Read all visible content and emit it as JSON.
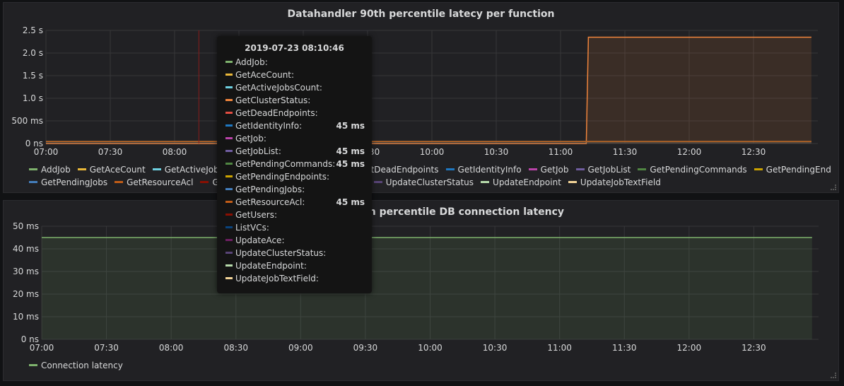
{
  "panel1": {
    "title": "Datahandler 90th percentile latecy per function",
    "chart_data": {
      "type": "line",
      "title": "Datahandler 90th percentile latecy per function",
      "y_ticks": [
        "0 ns",
        "500 ms",
        "1.0 s",
        "1.5 s",
        "2.0 s",
        "2.5 s"
      ],
      "y_range_seconds": [
        0,
        2.5
      ],
      "x_ticks": [
        "07:00",
        "07:30",
        "08:00",
        "08:30",
        "09:00",
        "09:30",
        "10:00",
        "10:30",
        "11:00",
        "11:30",
        "12:00",
        "12:30"
      ],
      "x_range": [
        "07:00",
        "13:00"
      ],
      "grid": true,
      "legend_position": "bottom",
      "series": [
        {
          "name": "AddJob",
          "color": "#7eb26d"
        },
        {
          "name": "GetAceCount",
          "color": "#eab839"
        },
        {
          "name": "GetActiveJobsCount",
          "color": "#6ed0e0"
        },
        {
          "name": "GetClusterStatus",
          "color": "#ef843c",
          "values_seconds": [
            {
              "x": "07:00",
              "y": 0.0
            },
            {
              "x": "11:12",
              "y": 0.0
            },
            {
              "x": "11:13",
              "y": 2.35
            },
            {
              "x": "12:57",
              "y": 2.35
            }
          ]
        },
        {
          "name": "GetDeadEndpoints",
          "color": "#e24d42"
        },
        {
          "name": "GetIdentityInfo",
          "color": "#1f78c1",
          "values_seconds": [
            {
              "x": "07:00",
              "y": 0.045
            },
            {
              "x": "12:57",
              "y": 0.045
            }
          ]
        },
        {
          "name": "GetJob",
          "color": "#ba43a9"
        },
        {
          "name": "GetJobList",
          "color": "#705da0",
          "values_seconds": [
            {
              "x": "07:00",
              "y": 0.045
            },
            {
              "x": "12:57",
              "y": 0.045
            }
          ]
        },
        {
          "name": "GetPendingCommands",
          "color": "#508642",
          "values_seconds": [
            {
              "x": "07:00",
              "y": 0.045
            },
            {
              "x": "12:57",
              "y": 0.045
            }
          ]
        },
        {
          "name": "GetPendingEndpoints",
          "color": "#cca300"
        },
        {
          "name": "GetPendingJobs",
          "color": "#447ebc"
        },
        {
          "name": "GetResourceAcl",
          "color": "#c15c17",
          "values_seconds": [
            {
              "x": "07:00",
              "y": 0.045
            },
            {
              "x": "12:57",
              "y": 0.045
            }
          ]
        },
        {
          "name": "GetUsers",
          "color": "#890f02"
        },
        {
          "name": "ListVCs",
          "color": "#0a437c"
        },
        {
          "name": "UpdateAce",
          "color": "#6d1f62"
        },
        {
          "name": "UpdateClusterStatus",
          "color": "#584477"
        },
        {
          "name": "UpdateEndpoint",
          "color": "#b7dbab"
        },
        {
          "name": "UpdateJobTextField",
          "color": "#f4d598"
        }
      ]
    },
    "legend_row1": [
      {
        "label": "AddJob",
        "color": "#7eb26d"
      },
      {
        "label": "GetAceCount",
        "color": "#eab839"
      },
      {
        "label": "GetActiveJobsCount",
        "color": "#6ed0e0"
      },
      {
        "label": "GetClusterStatus",
        "color": "#ef843c"
      },
      {
        "label": "GetDeadEndpoints",
        "color": "#e24d42"
      },
      {
        "label": "GetIdentityInfo",
        "color": "#1f78c1"
      },
      {
        "label": "GetJob",
        "color": "#ba43a9"
      },
      {
        "label": "GetJobList",
        "color": "#705da0"
      },
      {
        "label": "GetPendingCommands",
        "color": "#508642"
      },
      {
        "label": "GetPendingEndpoints",
        "color": "#cca300"
      }
    ],
    "legend_row2": [
      {
        "label": "GetPendingJobs",
        "color": "#447ebc"
      },
      {
        "label": "GetResourceAcl",
        "color": "#c15c17"
      },
      {
        "label": "GetUsers",
        "color": "#890f02"
      },
      {
        "label": "ListVCs",
        "color": "#0a437c"
      },
      {
        "label": "UpdateAce",
        "color": "#6d1f62"
      },
      {
        "label": "UpdateClusterStatus",
        "color": "#584477"
      },
      {
        "label": "UpdateEndpoint",
        "color": "#b7dbab"
      },
      {
        "label": "UpdateJobTextField",
        "color": "#f4d598"
      }
    ]
  },
  "panel2": {
    "title": "Datahandler 90th percentile DB connection latency",
    "chart_data": {
      "type": "area",
      "title": "Datahandler 90th percentile DB connection latency",
      "y_ticks": [
        "0 ns",
        "10 ms",
        "20 ms",
        "30 ms",
        "40 ms",
        "50 ms"
      ],
      "y_range_ms": [
        0,
        50
      ],
      "x_ticks": [
        "07:00",
        "07:30",
        "08:00",
        "08:30",
        "09:00",
        "09:30",
        "10:00",
        "10:30",
        "11:00",
        "11:30",
        "12:00",
        "12:30"
      ],
      "x_range": [
        "07:00",
        "13:00"
      ],
      "grid": true,
      "legend_position": "bottom",
      "series": [
        {
          "name": "Connection latency",
          "color": "#7eb26d",
          "values_ms": [
            {
              "x": "07:00",
              "y": 45
            },
            {
              "x": "12:57",
              "y": 45
            }
          ]
        }
      ]
    },
    "legend": [
      {
        "label": "Connection latency",
        "color": "#7eb26d"
      }
    ]
  },
  "tooltip": {
    "time": "2019-07-23 08:10:46",
    "rows": [
      {
        "label": "AddJob:",
        "color": "#7eb26d",
        "value": ""
      },
      {
        "label": "GetAceCount:",
        "color": "#eab839",
        "value": ""
      },
      {
        "label": "GetActiveJobsCount:",
        "color": "#6ed0e0",
        "value": ""
      },
      {
        "label": "GetClusterStatus:",
        "color": "#ef843c",
        "value": ""
      },
      {
        "label": "GetDeadEndpoints:",
        "color": "#e24d42",
        "value": ""
      },
      {
        "label": "GetIdentityInfo:",
        "color": "#1f78c1",
        "value": "45 ms"
      },
      {
        "label": "GetJob:",
        "color": "#ba43a9",
        "value": ""
      },
      {
        "label": "GetJobList:",
        "color": "#705da0",
        "value": "45 ms"
      },
      {
        "label": "GetPendingCommands:",
        "color": "#508642",
        "value": "45 ms"
      },
      {
        "label": "GetPendingEndpoints:",
        "color": "#cca300",
        "value": ""
      },
      {
        "label": "GetPendingJobs:",
        "color": "#447ebc",
        "value": ""
      },
      {
        "label": "GetResourceAcl:",
        "color": "#c15c17",
        "value": "45 ms"
      },
      {
        "label": "GetUsers:",
        "color": "#890f02",
        "value": ""
      },
      {
        "label": "ListVCs:",
        "color": "#0a437c",
        "value": ""
      },
      {
        "label": "UpdateAce:",
        "color": "#6d1f62",
        "value": ""
      },
      {
        "label": "UpdateClusterStatus:",
        "color": "#584477",
        "value": ""
      },
      {
        "label": "UpdateEndpoint:",
        "color": "#b7dbab",
        "value": ""
      },
      {
        "label": "UpdateJobTextField:",
        "color": "#f4d598",
        "value": ""
      }
    ]
  }
}
